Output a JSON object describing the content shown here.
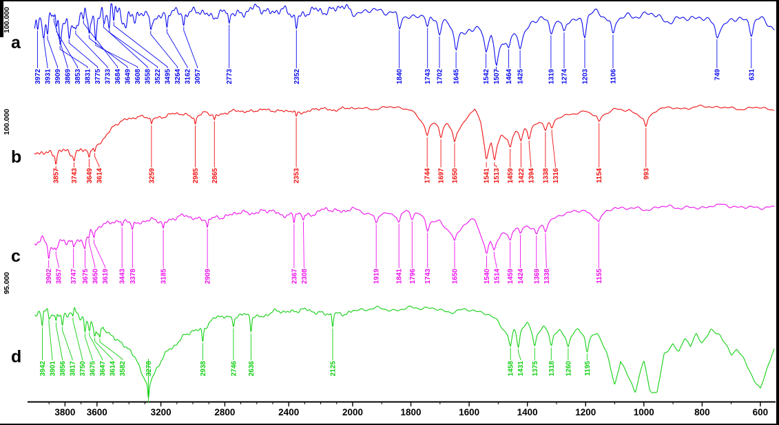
{
  "chart_data": {
    "type": "line",
    "title": "",
    "xlabel": "",
    "ylabel": "",
    "x_axis": {
      "min": 550,
      "max": 4000,
      "split_at": 2000,
      "ticks": [
        3800,
        3600,
        3200,
        2800,
        2400,
        2000,
        1800,
        1600,
        1400,
        1200,
        1000,
        800,
        600
      ],
      "tick_labels": [
        "3800",
        "3600",
        "3200",
        "2800",
        "2400",
        "2000",
        "1800",
        "1600",
        "1400",
        "1200",
        "1000",
        "800",
        "600"
      ]
    },
    "series": [
      {
        "id": "a",
        "panel_label": "a",
        "y_axis_label": "100.000",
        "color": "#0b0bf0",
        "peaks": [
          3972,
          3931,
          3909,
          3869,
          3853,
          3831,
          3775,
          3733,
          3684,
          3649,
          3608,
          3558,
          3522,
          3495,
          3264,
          3162,
          3057,
          2773,
          2352,
          1840,
          1743,
          1702,
          1645,
          1542,
          1507,
          1464,
          1425,
          1319,
          1274,
          1203,
          1106,
          749,
          631
        ],
        "envelope": [
          [
            4000,
            0.4
          ],
          [
            3960,
            0.24
          ],
          [
            3920,
            0.32
          ],
          [
            3880,
            0.22
          ],
          [
            3840,
            0.3
          ],
          [
            3800,
            0.22
          ],
          [
            3760,
            0.28
          ],
          [
            3720,
            0.21
          ],
          [
            3680,
            0.27
          ],
          [
            3640,
            0.2
          ],
          [
            3600,
            0.26
          ],
          [
            3560,
            0.2
          ],
          [
            3520,
            0.24
          ],
          [
            3470,
            0.18
          ],
          [
            3400,
            0.21
          ],
          [
            3300,
            0.18
          ],
          [
            3200,
            0.21
          ],
          [
            3100,
            0.16
          ],
          [
            3000,
            0.18
          ],
          [
            2800,
            0.15
          ],
          [
            2600,
            0.13
          ],
          [
            2450,
            0.14
          ],
          [
            2352,
            0.17
          ],
          [
            2200,
            0.12
          ],
          [
            2000,
            0.12
          ],
          [
            1900,
            0.13
          ],
          [
            1840,
            0.18
          ],
          [
            1780,
            0.14
          ],
          [
            1743,
            0.26
          ],
          [
            1702,
            0.3
          ],
          [
            1670,
            0.35
          ],
          [
            1645,
            0.58
          ],
          [
            1600,
            0.38
          ],
          [
            1560,
            0.5
          ],
          [
            1542,
            0.72
          ],
          [
            1525,
            0.55
          ],
          [
            1507,
            0.85
          ],
          [
            1486,
            0.62
          ],
          [
            1464,
            0.56
          ],
          [
            1446,
            0.46
          ],
          [
            1425,
            0.52
          ],
          [
            1390,
            0.32
          ],
          [
            1350,
            0.28
          ],
          [
            1319,
            0.3
          ],
          [
            1295,
            0.26
          ],
          [
            1274,
            0.29
          ],
          [
            1240,
            0.24
          ],
          [
            1203,
            0.27
          ],
          [
            1160,
            0.22
          ],
          [
            1106,
            0.28
          ],
          [
            1050,
            0.21
          ],
          [
            1000,
            0.23
          ],
          [
            950,
            0.2
          ],
          [
            900,
            0.23
          ],
          [
            850,
            0.22
          ],
          [
            800,
            0.26
          ],
          [
            749,
            0.36
          ],
          [
            710,
            0.28
          ],
          [
            670,
            0.3
          ],
          [
            631,
            0.36
          ],
          [
            600,
            0.3
          ],
          [
            550,
            0.38
          ]
        ],
        "noise": {
          "amp": 0.085,
          "boost": 2.4,
          "boost_above": 3340
        },
        "dip": {
          "base": 0.1,
          "var": 0.16,
          "width": 7
        },
        "seed": 1.3
      },
      {
        "id": "b",
        "panel_label": "b",
        "y_axis_label": "100.000",
        "color": "#f01010",
        "peaks": [
          3857,
          3743,
          3649,
          3614,
          3259,
          2985,
          2865,
          2353,
          1744,
          1697,
          1650,
          1541,
          1513,
          1459,
          1422,
          1394,
          1338,
          1316,
          1154,
          993
        ],
        "envelope": [
          [
            4000,
            0.82
          ],
          [
            3930,
            0.75
          ],
          [
            3857,
            0.85
          ],
          [
            3800,
            0.8
          ],
          [
            3743,
            0.82
          ],
          [
            3700,
            0.75
          ],
          [
            3649,
            0.78
          ],
          [
            3614,
            0.72
          ],
          [
            3560,
            0.55
          ],
          [
            3500,
            0.38
          ],
          [
            3450,
            0.3
          ],
          [
            3400,
            0.24
          ],
          [
            3350,
            0.22
          ],
          [
            3259,
            0.26
          ],
          [
            3150,
            0.18
          ],
          [
            3050,
            0.16
          ],
          [
            2985,
            0.22
          ],
          [
            2920,
            0.16
          ],
          [
            2865,
            0.2
          ],
          [
            2700,
            0.12
          ],
          [
            2500,
            0.1
          ],
          [
            2353,
            0.16
          ],
          [
            2200,
            0.09
          ],
          [
            2000,
            0.08
          ],
          [
            1900,
            0.08
          ],
          [
            1800,
            0.1
          ],
          [
            1744,
            0.4
          ],
          [
            1720,
            0.3
          ],
          [
            1697,
            0.42
          ],
          [
            1675,
            0.35
          ],
          [
            1650,
            0.5
          ],
          [
            1620,
            0.3
          ],
          [
            1580,
            0.06
          ],
          [
            1560,
            0.3
          ],
          [
            1541,
            0.85
          ],
          [
            1525,
            0.6
          ],
          [
            1513,
            0.8
          ],
          [
            1490,
            0.55
          ],
          [
            1459,
            0.6
          ],
          [
            1440,
            0.45
          ],
          [
            1422,
            0.5
          ],
          [
            1410,
            0.4
          ],
          [
            1394,
            0.45
          ],
          [
            1360,
            0.3
          ],
          [
            1338,
            0.35
          ],
          [
            1316,
            0.32
          ],
          [
            1250,
            0.15
          ],
          [
            1200,
            0.12
          ],
          [
            1154,
            0.22
          ],
          [
            1100,
            0.1
          ],
          [
            1050,
            0.08
          ],
          [
            993,
            0.28
          ],
          [
            950,
            0.1
          ],
          [
            850,
            0.07
          ],
          [
            700,
            0.06
          ],
          [
            600,
            0.08
          ],
          [
            550,
            0.1
          ]
        ],
        "noise": {
          "amp": 0.032,
          "boost": 2.2,
          "boost_above": 3680
        },
        "dip": {
          "base": 0.05,
          "var": 0.09,
          "width": 6
        },
        "seed": 2.7
      },
      {
        "id": "c",
        "panel_label": "c",
        "y_axis_label": "95.000",
        "color": "#ee10ee",
        "peaks": [
          3902,
          3857,
          3747,
          3675,
          3650,
          3619,
          3443,
          3378,
          3185,
          2909,
          2367,
          2308,
          1919,
          1841,
          1796,
          1743,
          1650,
          1540,
          1514,
          1459,
          1424,
          1369,
          1338,
          1155
        ],
        "envelope": [
          [
            4000,
            0.72
          ],
          [
            3950,
            0.6
          ],
          [
            3902,
            0.68
          ],
          [
            3857,
            0.64
          ],
          [
            3800,
            0.6
          ],
          [
            3747,
            0.62
          ],
          [
            3700,
            0.55
          ],
          [
            3675,
            0.58
          ],
          [
            3650,
            0.52
          ],
          [
            3619,
            0.48
          ],
          [
            3560,
            0.35
          ],
          [
            3500,
            0.28
          ],
          [
            3443,
            0.32
          ],
          [
            3400,
            0.28
          ],
          [
            3378,
            0.32
          ],
          [
            3300,
            0.26
          ],
          [
            3185,
            0.3
          ],
          [
            3100,
            0.24
          ],
          [
            3000,
            0.22
          ],
          [
            2909,
            0.27
          ],
          [
            2800,
            0.18
          ],
          [
            2600,
            0.15
          ],
          [
            2500,
            0.14
          ],
          [
            2367,
            0.19
          ],
          [
            2340,
            0.16
          ],
          [
            2308,
            0.19
          ],
          [
            2200,
            0.13
          ],
          [
            2100,
            0.12
          ],
          [
            2000,
            0.12
          ],
          [
            1919,
            0.17
          ],
          [
            1880,
            0.14
          ],
          [
            1841,
            0.18
          ],
          [
            1820,
            0.15
          ],
          [
            1796,
            0.18
          ],
          [
            1770,
            0.16
          ],
          [
            1743,
            0.28
          ],
          [
            1700,
            0.3
          ],
          [
            1650,
            0.55
          ],
          [
            1620,
            0.4
          ],
          [
            1580,
            0.25
          ],
          [
            1540,
            0.72
          ],
          [
            1527,
            0.6
          ],
          [
            1514,
            0.68
          ],
          [
            1490,
            0.5
          ],
          [
            1459,
            0.48
          ],
          [
            1440,
            0.4
          ],
          [
            1424,
            0.42
          ],
          [
            1400,
            0.35
          ],
          [
            1369,
            0.36
          ],
          [
            1350,
            0.32
          ],
          [
            1338,
            0.34
          ],
          [
            1280,
            0.18
          ],
          [
            1200,
            0.12
          ],
          [
            1155,
            0.24
          ],
          [
            1100,
            0.1
          ],
          [
            1000,
            0.07
          ],
          [
            900,
            0.06
          ],
          [
            800,
            0.05
          ],
          [
            700,
            0.06
          ],
          [
            600,
            0.07
          ],
          [
            550,
            0.1
          ]
        ],
        "noise": {
          "amp": 0.045,
          "boost": 1.9,
          "boost_above": 3620
        },
        "dip": {
          "base": 0.05,
          "var": 0.08,
          "width": 6
        },
        "seed": 4.1
      },
      {
        "id": "d",
        "panel_label": "d",
        "y_axis_label": "",
        "color": "#12cf12",
        "peaks": [
          3942,
          3901,
          3856,
          3817,
          3750,
          3675,
          3647,
          3614,
          3582,
          3278,
          2938,
          2746,
          2636,
          2125,
          1458,
          1431,
          1375,
          1318,
          1260,
          1195
        ],
        "envelope": [
          [
            4000,
            0.08
          ],
          [
            3942,
            0.14
          ],
          [
            3901,
            0.13
          ],
          [
            3856,
            0.15
          ],
          [
            3817,
            0.14
          ],
          [
            3750,
            0.16
          ],
          [
            3675,
            0.2
          ],
          [
            3647,
            0.22
          ],
          [
            3614,
            0.26
          ],
          [
            3582,
            0.3
          ],
          [
            3500,
            0.35
          ],
          [
            3400,
            0.5
          ],
          [
            3330,
            0.7
          ],
          [
            3278,
            0.88
          ],
          [
            3230,
            0.72
          ],
          [
            3150,
            0.5
          ],
          [
            3050,
            0.35
          ],
          [
            2938,
            0.28
          ],
          [
            2850,
            0.18
          ],
          [
            2746,
            0.18
          ],
          [
            2700,
            0.15
          ],
          [
            2636,
            0.17
          ],
          [
            2500,
            0.12
          ],
          [
            2400,
            0.11
          ],
          [
            2200,
            0.12
          ],
          [
            2125,
            0.15
          ],
          [
            2000,
            0.1
          ],
          [
            1800,
            0.09
          ],
          [
            1600,
            0.1
          ],
          [
            1550,
            0.12
          ],
          [
            1500,
            0.2
          ],
          [
            1458,
            0.38
          ],
          [
            1445,
            0.3
          ],
          [
            1431,
            0.36
          ],
          [
            1400,
            0.25
          ],
          [
            1375,
            0.38
          ],
          [
            1345,
            0.28
          ],
          [
            1318,
            0.36
          ],
          [
            1290,
            0.3
          ],
          [
            1260,
            0.4
          ],
          [
            1225,
            0.32
          ],
          [
            1195,
            0.4
          ],
          [
            1160,
            0.32
          ],
          [
            1130,
            0.5
          ],
          [
            1100,
            0.85
          ],
          [
            1080,
            0.6
          ],
          [
            1060,
            0.75
          ],
          [
            1030,
            0.95
          ],
          [
            1000,
            0.6
          ],
          [
            980,
            0.9
          ],
          [
            955,
            0.95
          ],
          [
            930,
            0.55
          ],
          [
            900,
            0.45
          ],
          [
            880,
            0.55
          ],
          [
            860,
            0.4
          ],
          [
            840,
            0.5
          ],
          [
            820,
            0.35
          ],
          [
            800,
            0.42
          ],
          [
            770,
            0.3
          ],
          [
            740,
            0.35
          ],
          [
            700,
            0.55
          ],
          [
            680,
            0.5
          ],
          [
            650,
            0.65
          ],
          [
            620,
            0.8
          ],
          [
            600,
            0.88
          ],
          [
            580,
            0.7
          ],
          [
            560,
            0.55
          ],
          [
            550,
            0.5
          ]
        ],
        "noise": {
          "amp": 0.028,
          "boost": 2.4,
          "boost_above": 3560
        },
        "dip": {
          "base": 0.05,
          "var": 0.09,
          "width": 6
        },
        "seed": 5.9
      }
    ]
  }
}
